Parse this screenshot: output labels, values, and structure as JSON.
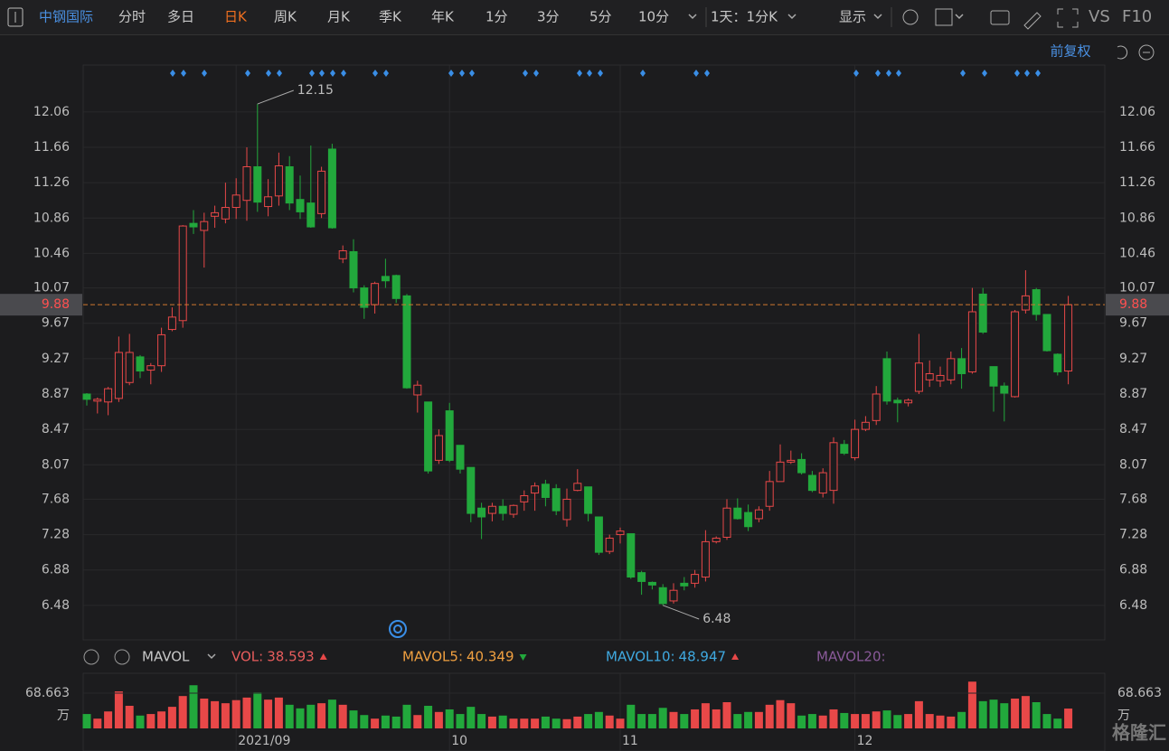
{
  "toolbar": {
    "stock": "中钢国际",
    "periods": [
      "分时",
      "多日",
      "日K",
      "周K",
      "月K",
      "季K",
      "年K",
      "1分",
      "3分",
      "5分",
      "10分"
    ],
    "active": "日K",
    "interval": "1天：1分K",
    "display": "显示",
    "vs": "VS",
    "f10": "F10",
    "adjust": "前复权"
  },
  "watermark": "格隆汇",
  "chart_data": {
    "type": "candlestick",
    "categories": [
      null,
      null,
      null,
      null,
      null,
      null,
      null,
      null,
      null,
      null,
      null,
      null,
      null,
      null,
      "2021/09",
      null,
      null,
      null,
      null,
      null,
      null,
      null,
      null,
      null,
      null,
      null,
      null,
      null,
      null,
      null,
      null,
      null,
      null,
      null,
      "10",
      null,
      null,
      null,
      null,
      null,
      null,
      null,
      null,
      null,
      null,
      null,
      null,
      null,
      null,
      null,
      "11",
      null,
      null,
      null,
      null,
      null,
      null,
      null,
      null,
      null,
      null,
      null,
      null,
      null,
      null,
      null,
      null,
      null,
      null,
      null,
      null,
      null,
      "12",
      null,
      null,
      null,
      null,
      null,
      null,
      null,
      null,
      null,
      null,
      null,
      null,
      null,
      null,
      null,
      null,
      null,
      null,
      null,
      null
    ],
    "open": [
      8.87,
      8.79,
      8.78,
      8.82,
      9.0,
      9.29,
      9.14,
      9.19,
      9.6,
      9.7,
      10.8,
      10.72,
      10.88,
      10.85,
      10.98,
      11.06,
      11.44,
      10.99,
      11.11,
      11.44,
      11.07,
      11.03,
      10.91,
      11.64,
      10.4,
      10.48,
      10.07,
      9.88,
      10.2,
      10.21,
      9.98,
      8.86,
      8.78,
      8.12,
      8.68,
      8.29,
      8.04,
      7.58,
      7.52,
      7.6,
      7.51,
      7.65,
      7.75,
      7.85,
      7.8,
      7.45,
      7.78,
      7.82,
      7.48,
      7.09,
      7.28,
      7.29,
      6.85,
      6.74,
      6.68,
      6.53,
      6.73,
      6.73,
      6.8,
      7.2,
      7.25,
      7.58,
      7.53,
      7.46,
      7.6,
      7.88,
      8.1,
      8.13,
      7.95,
      7.75,
      7.78,
      8.3,
      8.15,
      8.47,
      8.57,
      9.27,
      8.8,
      8.77,
      8.9,
      9.03,
      9.02,
      9.03,
      9.27,
      9.12,
      10.0,
      9.18,
      8.96,
      8.84,
      9.82,
      10.05,
      9.77,
      9.32,
      9.13
    ],
    "high": [
      8.88,
      8.83,
      8.95,
      9.52,
      9.55,
      9.31,
      9.22,
      9.62,
      9.85,
      10.78,
      10.95,
      10.92,
      11.0,
      11.26,
      11.31,
      11.66,
      12.15,
      11.3,
      11.6,
      11.56,
      11.34,
      11.68,
      11.44,
      11.7,
      10.55,
      10.62,
      10.1,
      10.14,
      10.4,
      10.22,
      10.0,
      9.02,
      8.78,
      8.47,
      8.77,
      8.29,
      8.04,
      7.64,
      7.64,
      7.68,
      7.62,
      7.78,
      7.87,
      7.9,
      7.85,
      7.8,
      8.02,
      7.82,
      7.48,
      7.28,
      7.36,
      7.29,
      6.87,
      6.75,
      6.72,
      6.73,
      6.8,
      6.88,
      7.33,
      7.26,
      7.68,
      7.69,
      7.62,
      7.6,
      8.0,
      8.3,
      8.23,
      8.2,
      8.0,
      8.03,
      8.38,
      8.35,
      8.58,
      8.62,
      8.96,
      9.35,
      8.83,
      8.82,
      9.55,
      9.25,
      9.18,
      9.35,
      9.39,
      10.07,
      10.07,
      9.18,
      9.0,
      9.82,
      10.27,
      10.07,
      9.77,
      9.33,
      9.98
    ],
    "low": [
      8.74,
      8.65,
      8.63,
      8.78,
      8.97,
      9.05,
      8.98,
      9.12,
      9.58,
      9.62,
      10.68,
      10.3,
      10.75,
      10.8,
      10.85,
      10.83,
      10.93,
      10.88,
      11.0,
      10.95,
      10.85,
      10.75,
      10.86,
      10.74,
      10.35,
      10.02,
      9.72,
      9.78,
      10.07,
      9.9,
      8.93,
      8.66,
      7.97,
      8.08,
      8.1,
      7.97,
      7.42,
      7.23,
      7.43,
      7.44,
      7.47,
      7.55,
      7.55,
      7.6,
      7.5,
      7.37,
      7.77,
      7.43,
      7.05,
      7.06,
      7.18,
      6.78,
      6.6,
      6.66,
      6.48,
      6.5,
      6.65,
      6.68,
      6.75,
      7.18,
      7.22,
      7.45,
      7.32,
      7.42,
      7.55,
      7.88,
      8.08,
      7.96,
      7.76,
      7.7,
      7.63,
      8.18,
      8.12,
      8.45,
      8.52,
      8.75,
      8.55,
      8.73,
      8.87,
      8.95,
      8.95,
      8.98,
      8.93,
      9.1,
      9.55,
      8.67,
      8.56,
      8.83,
      9.78,
      9.7,
      9.35,
      9.08,
      8.98
    ],
    "close": [
      8.81,
      8.81,
      8.93,
      9.34,
      9.34,
      9.13,
      9.19,
      9.54,
      9.74,
      10.77,
      10.76,
      10.82,
      10.92,
      10.98,
      11.12,
      11.44,
      11.04,
      11.1,
      11.45,
      11.03,
      10.93,
      10.76,
      11.39,
      10.75,
      10.49,
      10.07,
      9.85,
      10.12,
      10.15,
      9.95,
      8.94,
      8.97,
      8.0,
      8.4,
      8.12,
      8.02,
      7.52,
      7.48,
      7.6,
      7.52,
      7.61,
      7.72,
      7.83,
      7.7,
      7.55,
      7.68,
      7.86,
      7.52,
      7.08,
      7.24,
      7.32,
      6.8,
      6.75,
      6.71,
      6.5,
      6.65,
      6.7,
      6.83,
      7.2,
      7.24,
      7.58,
      7.46,
      7.37,
      7.56,
      7.88,
      8.1,
      8.12,
      7.98,
      7.78,
      7.98,
      8.32,
      8.2,
      8.47,
      8.55,
      8.87,
      8.79,
      8.77,
      8.8,
      9.22,
      9.1,
      9.08,
      9.27,
      9.1,
      9.8,
      9.57,
      8.96,
      8.88,
      9.8,
      9.98,
      9.77,
      9.36,
      9.12,
      9.88
    ],
    "up_color": "#e84848",
    "down_color": "#22a83c",
    "ylim": [
      6.09,
      12.59
    ],
    "yticks": [
      12.06,
      11.66,
      11.26,
      10.86,
      10.46,
      10.07,
      9.67,
      9.27,
      8.87,
      8.47,
      8.07,
      7.68,
      7.28,
      6.88,
      6.48
    ],
    "last_price": 9.88,
    "max_annotation": 12.15,
    "min_annotation": 6.48,
    "volume": {
      "indicator": "MAVOL",
      "values": [
        28,
        19,
        33,
        72,
        44,
        25,
        28,
        33,
        42,
        63,
        84,
        58,
        53,
        49,
        55,
        60,
        70,
        56,
        60,
        46,
        39,
        46,
        49,
        56,
        46,
        35,
        26,
        19,
        25,
        23,
        46,
        26,
        44,
        32,
        37,
        28,
        42,
        28,
        23,
        25,
        19,
        19,
        19,
        23,
        19,
        18,
        23,
        28,
        32,
        25,
        19,
        46,
        28,
        28,
        40,
        32,
        28,
        37,
        49,
        37,
        51,
        28,
        32,
        32,
        46,
        55,
        49,
        25,
        28,
        25,
        37,
        30,
        28,
        28,
        33,
        35,
        26,
        28,
        53,
        28,
        25,
        23,
        32,
        91,
        53,
        56,
        49,
        58,
        63,
        51,
        28,
        19,
        38.593
      ],
      "ylim": [
        0,
        102
      ],
      "yticks": [
        68.663
      ],
      "unit": "万",
      "stats": [
        {
          "name": "VOL:",
          "value": 38.593,
          "trend": "up",
          "color": "#e85d5d"
        },
        {
          "name": "MAVOL5:",
          "value": 40.349,
          "trend": "down",
          "color": "#f0a040"
        },
        {
          "name": "MAVOL10:",
          "value": 48.947,
          "trend": "up",
          "color": "#3fa9e0"
        },
        {
          "name": "MAVOL20:",
          "color": "#8a5a9a"
        }
      ]
    }
  }
}
